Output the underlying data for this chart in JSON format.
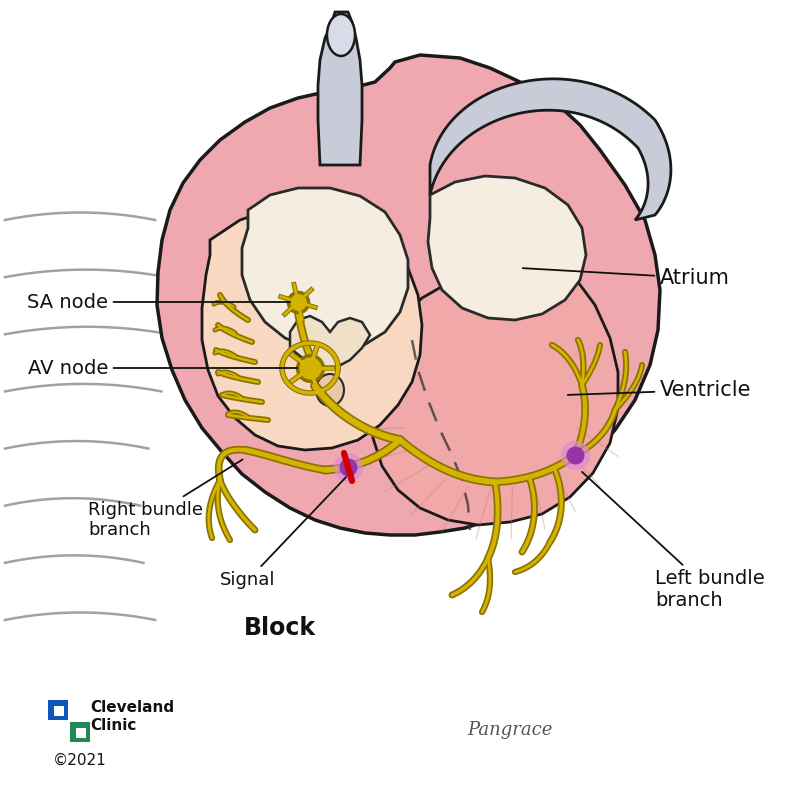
{
  "background_color": "#ffffff",
  "heart_outer_color": "#e8909a",
  "heart_fill_color": "#f0a8b0",
  "rv_fill": "#f5c8c0",
  "lv_fill": "#f0a8a8",
  "atrium_fill": "#f8d8c8",
  "inner_chamber_fill": "#f5ede0",
  "vessel_color": "#c8ccd8",
  "vessel_inner": "#d8dce8",
  "nerve_color": "#d4b400",
  "nerve_dark": "#8a7200",
  "block_color": "#cc0000",
  "signal_color_outer": "#cc44cc",
  "signal_color_inner": "#9933aa",
  "label_color": "#111111",
  "rib_color": "#555555",
  "sa_label": "SA node",
  "av_label": "AV node",
  "rbb_label": "Right bundle\nbranch",
  "signal_label": "Signal",
  "block_label": "Block",
  "atrium_label": "Atrium",
  "ventricle_label": "Ventricle",
  "lbb_label": "Left bundle\nbranch",
  "cc_line1": "Cleveland",
  "cc_line2": "Clinic",
  "copyright": "©2021",
  "signature": "Pangrace"
}
